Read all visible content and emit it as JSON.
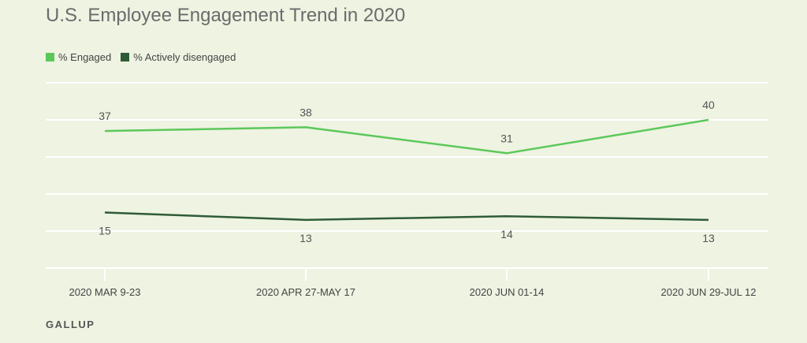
{
  "chart_data": {
    "type": "line",
    "title": "U.S. Employee Engagement Trend in 2020",
    "categories": [
      "2020 MAR 9-23",
      "2020 APR 27-MAY 17",
      "2020 JUN 01-14",
      "2020 JUN 29-JUL 12"
    ],
    "series": [
      {
        "name": "% Engaged",
        "values": [
          37,
          38,
          31,
          40
        ],
        "color": "#5cc85a"
      },
      {
        "name": "% Actively disengaged",
        "values": [
          15,
          13,
          14,
          13
        ],
        "color": "#2f5b37"
      }
    ],
    "ylim": [
      0,
      50
    ],
    "grid": true,
    "legend_position": "top-left"
  },
  "source": "GALLUP"
}
